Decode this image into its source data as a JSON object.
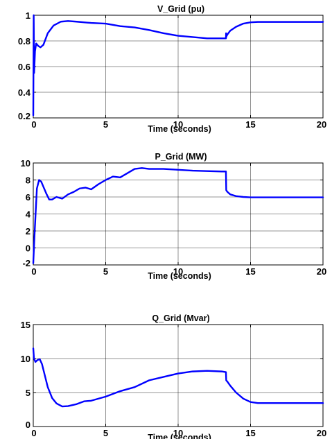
{
  "chart_data": [
    {
      "type": "line",
      "title": "V_Grid (pu)",
      "xlabel": "Time (seconds)",
      "ylabel": "",
      "xlim": [
        0,
        20
      ],
      "ylim": [
        0.2,
        1.0
      ],
      "xticks": [
        "0",
        "5",
        "10",
        "15",
        "20"
      ],
      "xtick_values": [
        0,
        5,
        10,
        15,
        20
      ],
      "yticks": [
        "0.2",
        "0.4",
        "0.6",
        "0.8",
        "1"
      ],
      "ytick_values": [
        0.2,
        0.4,
        0.6,
        0.8,
        1.0
      ],
      "grid": true,
      "color": "#0000ff",
      "series": [
        {
          "x": [
            0,
            0.03,
            0.06,
            0.12,
            0.2,
            0.35,
            0.5,
            0.7,
            1.0,
            1.4,
            1.9,
            2.4,
            3.0,
            4.0,
            5.0,
            6.0,
            7.0,
            8.0,
            9.0,
            10.0,
            11.0,
            12.0,
            13.0,
            13.3,
            13.31,
            13.32,
            13.35,
            13.4,
            13.6,
            14.0,
            14.5,
            15.0,
            15.5,
            16.0,
            17.0,
            18.0,
            19.0,
            20.0
          ],
          "y": [
            0.22,
            1.0,
            0.55,
            0.72,
            0.78,
            0.76,
            0.75,
            0.77,
            0.86,
            0.92,
            0.95,
            0.955,
            0.95,
            0.94,
            0.935,
            0.915,
            0.905,
            0.885,
            0.86,
            0.84,
            0.83,
            0.82,
            0.82,
            0.82,
            0.86,
            0.83,
            0.84,
            0.85,
            0.88,
            0.91,
            0.935,
            0.945,
            0.948,
            0.948,
            0.948,
            0.948,
            0.948,
            0.948
          ]
        }
      ]
    },
    {
      "type": "line",
      "title": "P_Grid (MW)",
      "xlabel": "Time (seconds)",
      "ylabel": "",
      "xlim": [
        0,
        20
      ],
      "ylim": [
        -2,
        10
      ],
      "xticks": [
        "0",
        "5",
        "10",
        "15",
        "20"
      ],
      "xtick_values": [
        0,
        5,
        10,
        15,
        20
      ],
      "yticks": [
        "-2",
        "0",
        "2",
        "4",
        "6",
        "8",
        "10"
      ],
      "ytick_values": [
        -2,
        0,
        2,
        4,
        6,
        8,
        10
      ],
      "grid": true,
      "color": "#0000ff",
      "series": [
        {
          "x": [
            0,
            0.1,
            0.25,
            0.4,
            0.55,
            0.7,
            0.9,
            1.1,
            1.3,
            1.6,
            2.0,
            2.4,
            2.8,
            3.2,
            3.6,
            4.0,
            4.5,
            5.0,
            5.5,
            6.0,
            6.5,
            7.0,
            7.5,
            8.0,
            9.0,
            10.0,
            11.0,
            12.0,
            13.0,
            13.3,
            13.32,
            13.4,
            13.6,
            14.0,
            14.5,
            15.0,
            16.0,
            17.0,
            18.0,
            19.0,
            20.0
          ],
          "y": [
            -1.8,
            2.0,
            7.0,
            8.0,
            7.8,
            7.2,
            6.4,
            5.7,
            5.7,
            6.0,
            5.8,
            6.3,
            6.6,
            7.0,
            7.1,
            6.9,
            7.5,
            8.0,
            8.4,
            8.3,
            8.8,
            9.3,
            9.4,
            9.3,
            9.3,
            9.2,
            9.1,
            9.05,
            9.0,
            9.0,
            6.8,
            6.6,
            6.3,
            6.1,
            6.0,
            5.95,
            5.95,
            5.95,
            5.95,
            5.95,
            5.95
          ]
        }
      ]
    },
    {
      "type": "line",
      "title": "Q_Grid (Mvar)",
      "xlabel": "Time (seconds)",
      "ylabel": "",
      "xlim": [
        0,
        20
      ],
      "ylim": [
        0,
        15
      ],
      "xticks": [
        "0",
        "5",
        "10",
        "15",
        "20"
      ],
      "xtick_values": [
        0,
        5,
        10,
        15,
        20
      ],
      "yticks": [
        "0",
        "5",
        "10",
        "15"
      ],
      "ytick_values": [
        0,
        5,
        10,
        15
      ],
      "grid": true,
      "color": "#0000ff",
      "series": [
        {
          "x": [
            0,
            0.05,
            0.15,
            0.3,
            0.45,
            0.6,
            0.8,
            1.0,
            1.3,
            1.6,
            2.0,
            2.4,
            3.0,
            3.5,
            4.0,
            5.0,
            6.0,
            7.0,
            8.0,
            9.0,
            10.0,
            11.0,
            12.0,
            13.0,
            13.3,
            13.32,
            13.4,
            13.6,
            14.0,
            14.5,
            15.0,
            15.5,
            16.0,
            17.0,
            18.0,
            19.0,
            20.0
          ],
          "y": [
            11.5,
            10.0,
            9.5,
            9.8,
            9.9,
            9.2,
            7.5,
            5.8,
            4.2,
            3.4,
            2.95,
            3.0,
            3.3,
            3.7,
            3.8,
            4.4,
            5.2,
            5.8,
            6.8,
            7.3,
            7.8,
            8.1,
            8.2,
            8.1,
            8.0,
            6.8,
            6.6,
            6.0,
            5.0,
            4.1,
            3.6,
            3.45,
            3.45,
            3.45,
            3.45,
            3.45,
            3.45
          ]
        }
      ]
    }
  ]
}
